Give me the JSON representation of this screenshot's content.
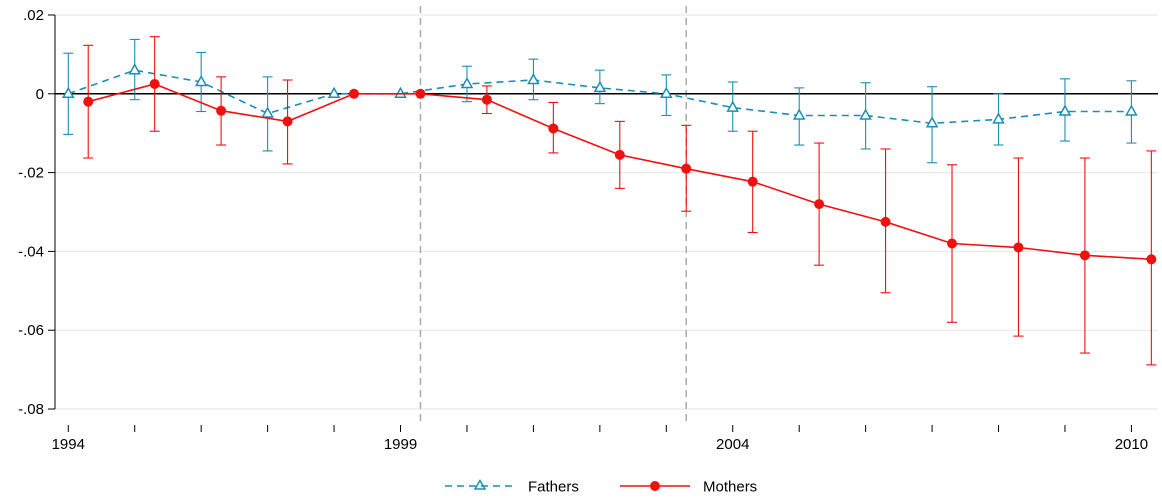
{
  "chart_data": {
    "type": "line",
    "title": "",
    "xlabel": "",
    "ylabel": "",
    "xlim": [
      1993.8,
      2010.4
    ],
    "ylim": [
      -0.08,
      0.02
    ],
    "x_ticks": [
      1994,
      1995,
      1996,
      1997,
      1998,
      1999,
      2000,
      2001,
      2002,
      2003,
      2004,
      2005,
      2006,
      2007,
      2008,
      2009,
      2010
    ],
    "x_tick_labels": [
      {
        "value": 1994,
        "label": "1994"
      },
      {
        "value": 1999,
        "label": "1999"
      },
      {
        "value": 2004,
        "label": "2004"
      },
      {
        "value": 2010,
        "label": "2010"
      }
    ],
    "y_ticks": [
      {
        "value": 0.02,
        "label": ".02"
      },
      {
        "value": 0,
        "label": "0"
      },
      {
        "value": -0.02,
        "label": "-.02"
      },
      {
        "value": -0.04,
        "label": "-.04"
      },
      {
        "value": -0.06,
        "label": "-.06"
      },
      {
        "value": -0.08,
        "label": "-.08"
      }
    ],
    "grid": true,
    "zero_line": true,
    "vertical_dashed_lines": [
      1999.3,
      2003.3
    ],
    "legend_position": "bottom-center",
    "series": [
      {
        "name": "Fathers",
        "color": "#1a8fb4",
        "style": "dashed",
        "marker": "triangle-open",
        "x": [
          1994.0,
          1995.0,
          1996.0,
          1997.0,
          1998.0,
          1999.0,
          2000.0,
          2001.0,
          2002.0,
          2003.0,
          2004.0,
          2005.0,
          2006.0,
          2007.0,
          2008.0,
          2009.0,
          2010.0
        ],
        "y": [
          0.0,
          0.006,
          0.003,
          -0.005,
          0.0,
          0.0,
          0.0025,
          0.0035,
          0.0015,
          0.0,
          -0.0035,
          -0.0055,
          -0.0055,
          -0.0075,
          -0.0065,
          -0.0045,
          -0.0045
        ],
        "ci_low": [
          -0.0103,
          -0.0015,
          -0.0045,
          -0.0145,
          null,
          null,
          -0.002,
          -0.0015,
          -0.0025,
          -0.0055,
          -0.0095,
          -0.013,
          -0.014,
          -0.0175,
          -0.013,
          -0.012,
          -0.0125
        ],
        "ci_high": [
          0.0103,
          0.0138,
          0.0105,
          0.0043,
          null,
          null,
          0.007,
          0.0088,
          0.006,
          0.0048,
          0.003,
          0.0015,
          0.0028,
          0.0018,
          0.0,
          0.0038,
          0.0033
        ]
      },
      {
        "name": "Mothers",
        "color": "#ee1111",
        "style": "solid",
        "marker": "circle-filled",
        "x": [
          1994.3,
          1995.3,
          1996.3,
          1997.3,
          1998.3,
          1999.3,
          2000.3,
          2001.3,
          2002.3,
          2003.3,
          2004.3,
          2005.3,
          2006.3,
          2007.3,
          2008.3,
          2009.3,
          2010.3
        ],
        "y": [
          -0.002,
          0.0025,
          -0.0043,
          -0.007,
          0.0,
          0.0,
          -0.0015,
          -0.0088,
          -0.0155,
          -0.019,
          -0.0223,
          -0.028,
          -0.0325,
          -0.038,
          -0.039,
          -0.041,
          -0.042
        ],
        "ci_low": [
          -0.0163,
          -0.0095,
          -0.013,
          -0.0178,
          null,
          null,
          -0.005,
          -0.015,
          -0.024,
          -0.0298,
          -0.0352,
          -0.0435,
          -0.0505,
          -0.058,
          -0.0615,
          -0.0658,
          -0.0688
        ],
        "ci_high": [
          0.0123,
          0.0145,
          0.0043,
          0.0035,
          null,
          null,
          0.002,
          -0.0022,
          -0.007,
          -0.008,
          -0.0095,
          -0.0125,
          -0.014,
          -0.018,
          -0.0163,
          -0.0163,
          -0.0145
        ]
      }
    ]
  }
}
